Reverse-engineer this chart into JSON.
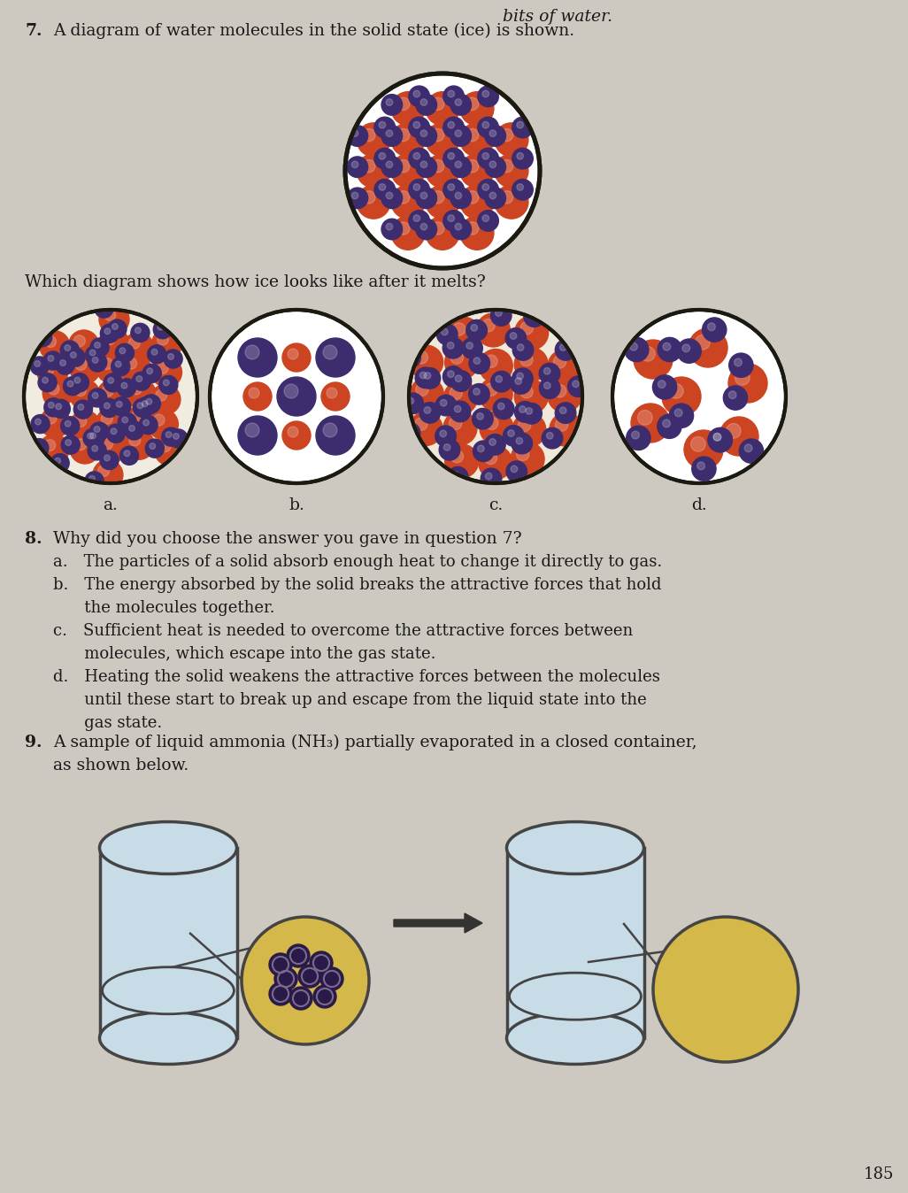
{
  "bg_color": "#cdc9c0",
  "text_color": "#1a1a1a",
  "q7_label": "7.",
  "q7_body": "A diagram of water molecules in the solid state (ice) is shown.",
  "which_text": "Which diagram shows how ice looks like after it melts?",
  "q8_label": "8.",
  "q8_body": "Why did you choose the answer you gave in question 7?",
  "q8a": "a. The particles of a solid absorb enough heat to change it directly to gas.",
  "q8b_1": "b. The energy absorbed by the solid breaks the attractive forces that hold",
  "q8b_2": "    the molecules together.",
  "q8c_1": "c. Sufficient heat is needed to overcome the attractive forces between",
  "q8c_2": "    molecules, which escape into the gas state.",
  "q8d_1": "d. Heating the solid weakens the attractive forces between the molecules",
  "q8d_2": "    until these start to break up and escape from the liquid state into the",
  "q8d_3": "    gas state.",
  "q9_label": "9.",
  "q9_body_1": "A sample of liquid ammonia (NH₃) partially evaporated in a closed container,",
  "q9_body_2": "as shown below.",
  "page_num": "185",
  "header_text": "bits of water.",
  "dark_mol": "#3d2c6e",
  "red_mol": "#cc4422",
  "label_a": "a.",
  "label_b": "b.",
  "label_c": "c.",
  "label_d": "d.",
  "beaker_fill": "#c8dce8",
  "beaker_edge": "#444444",
  "magnify_bg": "#d4b84a",
  "arrow_color": "#333333"
}
